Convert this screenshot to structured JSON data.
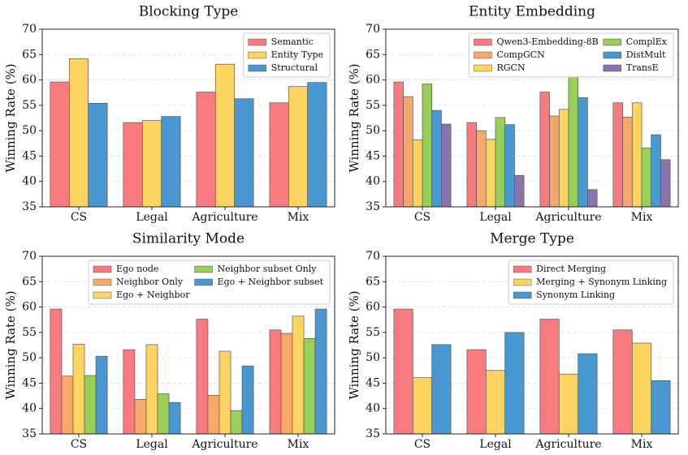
{
  "chart_data": [
    {
      "type": "bar",
      "title": "Blocking Type",
      "ylabel": "Winning Rate (%)",
      "categories": [
        "CS",
        "Legal",
        "Agriculture",
        "Mix"
      ],
      "series": [
        {
          "name": "Semantic",
          "color": "#f87b80",
          "values": [
            59.6,
            51.6,
            57.6,
            55.5
          ]
        },
        {
          "name": "Entity Type",
          "color": "#fdd462",
          "values": [
            64.2,
            52.0,
            63.1,
            58.7
          ]
        },
        {
          "name": "Structural",
          "color": "#4a98d2",
          "values": [
            55.4,
            52.8,
            56.3,
            59.5
          ]
        }
      ],
      "ylim": [
        35,
        70
      ],
      "yticks": [
        35,
        40,
        45,
        50,
        55,
        60,
        65,
        70
      ],
      "grid": true,
      "legend": "upper right",
      "legend_columns": 1
    },
    {
      "type": "bar",
      "title": "Entity Embedding",
      "ylabel": "Winning Rate (%)",
      "categories": [
        "CS",
        "Legal",
        "Agriculture",
        "Mix"
      ],
      "series": [
        {
          "name": "Qwen3-Embedding-8B",
          "color": "#f87b80",
          "values": [
            59.6,
            51.6,
            57.6,
            55.5
          ]
        },
        {
          "name": "CompGCN",
          "color": "#f8a86a",
          "values": [
            56.7,
            50.0,
            52.9,
            52.7
          ]
        },
        {
          "name": "RGCN",
          "color": "#fdd462",
          "values": [
            48.2,
            48.3,
            54.2,
            55.5
          ]
        },
        {
          "name": "ComplEx",
          "color": "#98cf58",
          "values": [
            59.2,
            52.6,
            61.0,
            46.6
          ]
        },
        {
          "name": "DistMult",
          "color": "#4a98d2",
          "values": [
            54.0,
            51.2,
            56.5,
            49.2
          ]
        },
        {
          "name": "TransE",
          "color": "#8c74ab",
          "values": [
            51.3,
            41.2,
            38.4,
            44.3
          ]
        }
      ],
      "ylim": [
        35,
        70
      ],
      "yticks": [
        35,
        40,
        45,
        50,
        55,
        60,
        65,
        70
      ],
      "grid": true,
      "legend": "upper right",
      "legend_columns": 2
    },
    {
      "type": "bar",
      "title": "Similarity Mode",
      "ylabel": "Winning Rate (%)",
      "categories": [
        "CS",
        "Legal",
        "Agriculture",
        "Mix"
      ],
      "series": [
        {
          "name": "Ego node",
          "color": "#f87b80",
          "values": [
            59.6,
            51.6,
            57.6,
            55.5
          ]
        },
        {
          "name": "Neighbor Only",
          "color": "#f8a86a",
          "values": [
            46.4,
            41.8,
            42.6,
            54.8
          ]
        },
        {
          "name": "Ego + Neighbor",
          "color": "#fdd462",
          "values": [
            52.7,
            52.6,
            51.3,
            58.2
          ]
        },
        {
          "name": "Neighbor subset Only",
          "color": "#98cf58",
          "values": [
            46.5,
            42.9,
            39.6,
            53.8
          ]
        },
        {
          "name": "Ego + Neighbor subset",
          "color": "#4a98d2",
          "values": [
            50.3,
            41.2,
            48.4,
            59.6
          ]
        }
      ],
      "ylim": [
        35,
        70
      ],
      "yticks": [
        35,
        40,
        45,
        50,
        55,
        60,
        65,
        70
      ],
      "grid": true,
      "legend": "upper right",
      "legend_columns": 2
    },
    {
      "type": "bar",
      "title": "Merge Type",
      "ylabel": "Winning Rate (%)",
      "categories": [
        "CS",
        "Legal",
        "Agriculture",
        "Mix"
      ],
      "series": [
        {
          "name": "Direct Merging",
          "color": "#f87b80",
          "values": [
            59.6,
            51.6,
            57.6,
            55.5
          ]
        },
        {
          "name": "Merging + Synonym Linking",
          "color": "#fdd462",
          "values": [
            46.1,
            47.5,
            46.8,
            52.9
          ]
        },
        {
          "name": "Synonym Linking",
          "color": "#4a98d2",
          "values": [
            52.6,
            55.0,
            50.8,
            45.5
          ]
        }
      ],
      "ylim": [
        35,
        70
      ],
      "yticks": [
        35,
        40,
        45,
        50,
        55,
        60,
        65,
        70
      ],
      "grid": true,
      "legend": "upper right",
      "legend_columns": 1
    }
  ]
}
